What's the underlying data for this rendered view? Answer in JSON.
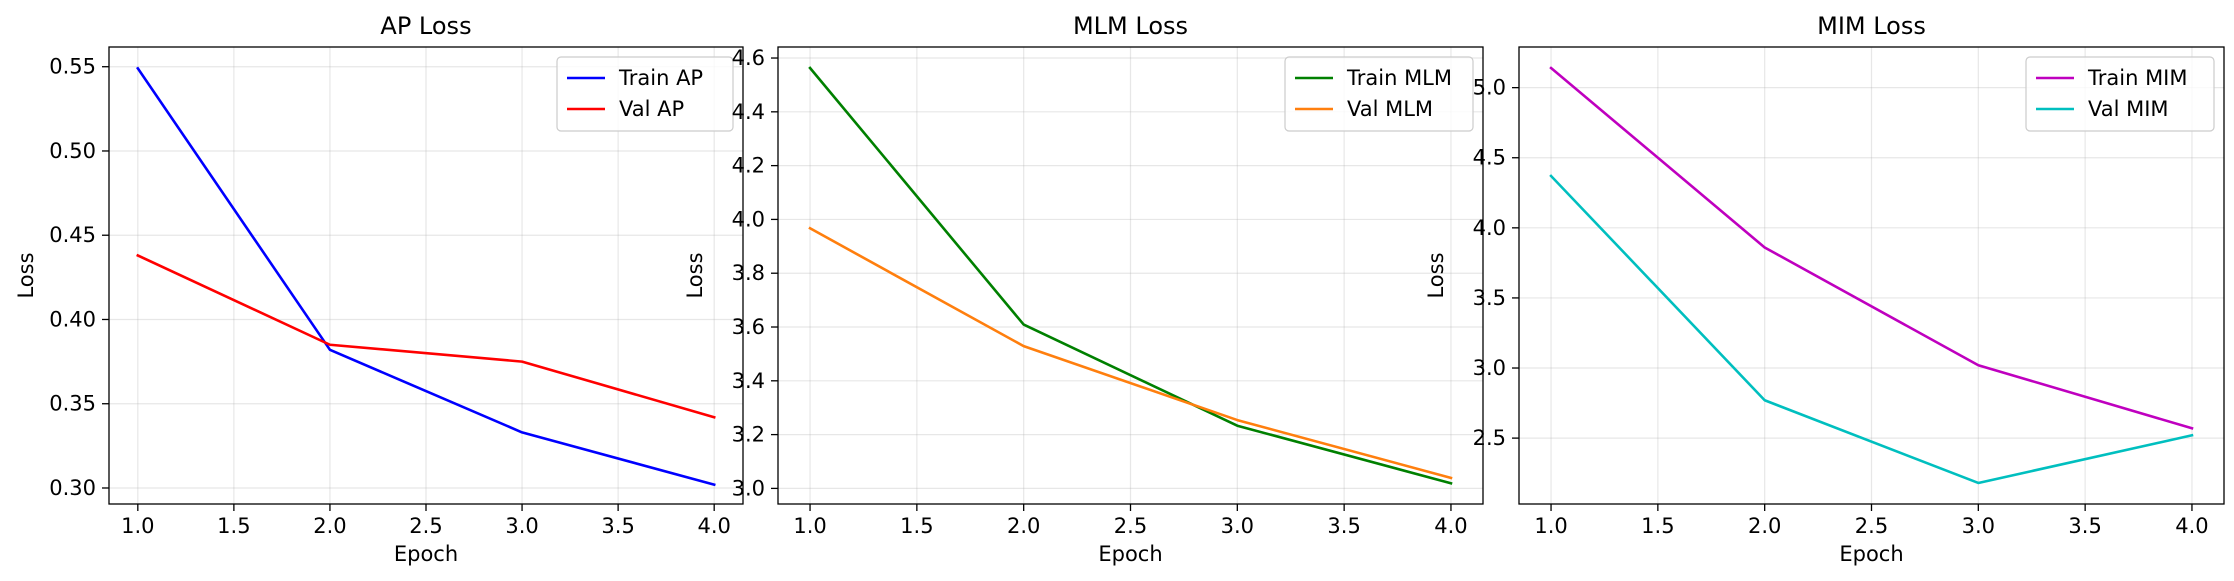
{
  "chart_data": [
    {
      "type": "line",
      "title": "AP Loss",
      "xlabel": "Epoch",
      "ylabel": "Loss",
      "x": [
        1,
        2,
        3,
        4
      ],
      "xlim": [
        0.85,
        4.15
      ],
      "ylim": [
        0.2905,
        0.5617
      ],
      "xticks": [
        "1.0",
        "1.5",
        "2.0",
        "2.5",
        "3.0",
        "3.5",
        "4.0"
      ],
      "yticks": [
        "0.30",
        "0.35",
        "0.40",
        "0.45",
        "0.50",
        "0.55"
      ],
      "grid": true,
      "legend": "top-right",
      "series": [
        {
          "name": "Train AP",
          "color": "#0000ff",
          "values": [
            0.549,
            0.382,
            0.333,
            0.302
          ]
        },
        {
          "name": "Val AP",
          "color": "#ff0000",
          "values": [
            0.438,
            0.385,
            0.375,
            0.342
          ]
        }
      ]
    },
    {
      "type": "line",
      "title": "MLM Loss",
      "xlabel": "Epoch",
      "ylabel": "Loss",
      "x": [
        1,
        2,
        3,
        4
      ],
      "xlim": [
        0.85,
        4.15
      ],
      "ylim": [
        2.942,
        4.641
      ],
      "xticks": [
        "1.0",
        "1.5",
        "2.0",
        "2.5",
        "3.0",
        "3.5",
        "4.0"
      ],
      "yticks": [
        "3.0",
        "3.2",
        "3.4",
        "3.6",
        "3.8",
        "4.0",
        "4.2",
        "4.4",
        "4.6"
      ],
      "grid": true,
      "legend": "top-right",
      "series": [
        {
          "name": "Train MLM",
          "color": "#008000",
          "values": [
            4.563,
            3.609,
            3.233,
            3.019
          ]
        },
        {
          "name": "Val MLM",
          "color": "#ff7f0e",
          "values": [
            3.967,
            3.529,
            3.254,
            3.039
          ]
        }
      ]
    },
    {
      "type": "line",
      "title": "MIM Loss",
      "xlabel": "Epoch",
      "ylabel": "Loss",
      "x": [
        1,
        2,
        3,
        4
      ],
      "xlim": [
        0.85,
        4.15
      ],
      "ylim": [
        2.03,
        5.29
      ],
      "xticks": [
        "1.0",
        "1.5",
        "2.0",
        "2.5",
        "3.0",
        "3.5",
        "4.0"
      ],
      "yticks": [
        "2.5",
        "3.0",
        "3.5",
        "4.0",
        "4.5",
        "5.0"
      ],
      "grid": true,
      "legend": "top-right",
      "series": [
        {
          "name": "Train MIM",
          "color": "#bf00bf",
          "values": [
            5.14,
            3.86,
            3.02,
            2.57
          ]
        },
        {
          "name": "Val MIM",
          "color": "#00bfbf",
          "values": [
            4.37,
            2.77,
            2.18,
            2.52
          ]
        }
      ]
    }
  ]
}
